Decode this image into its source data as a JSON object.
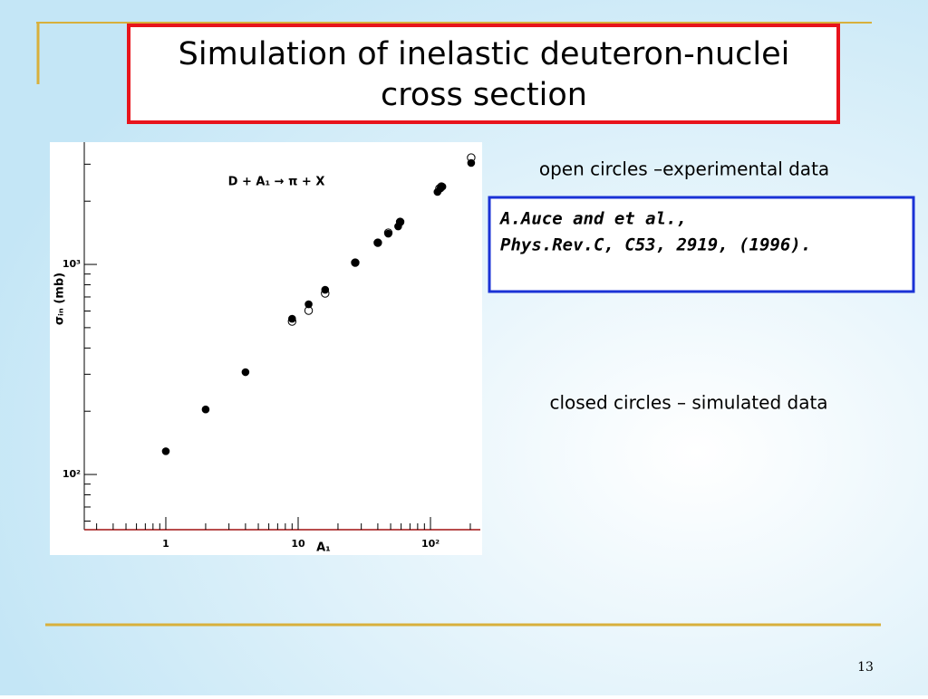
{
  "slide": {
    "title": [
      "Simulation of inelastic deuteron-nuclei",
      "cross section"
    ],
    "note_open": "open circles –experimental data",
    "reference": [
      "A.Auce and et al.,",
      "Phys.Rev.C, C53, 2919, (1996)."
    ],
    "note_closed": "closed circles – simulated data",
    "page_number": "13"
  },
  "chart_data": {
    "type": "scatter",
    "title": "D + A₁ → π + X",
    "xlabel": "A₁",
    "ylabel": "σᵢₙ (mb)",
    "log_x": true,
    "log_y": true,
    "xlim": [
      0.242,
      238
    ],
    "ylim": [
      54.6,
      3820
    ],
    "xticks": [
      1,
      10,
      {
        "value": 100,
        "label": "10²"
      }
    ],
    "yticks": [
      {
        "value": 100,
        "label": "10²"
      },
      {
        "value": 1000,
        "label": "10³"
      }
    ],
    "xminorticks": [
      0.3,
      0.4,
      0.5,
      0.6,
      0.7,
      0.8,
      0.9,
      2,
      3,
      4,
      5,
      6,
      7,
      8,
      9,
      20,
      30,
      40,
      50,
      60,
      70,
      80,
      90,
      200
    ],
    "yminorticks": [
      60,
      70,
      80,
      90,
      200,
      300,
      400,
      500,
      600,
      700,
      800,
      900,
      2000,
      3000
    ],
    "series": [
      {
        "color": "#000000",
        "filled": true,
        "x": [
          1,
          2,
          4,
          9,
          12,
          16,
          27,
          40,
          48,
          57,
          59,
          113,
          119,
          123,
          203
        ],
        "values": [
          129,
          204,
          307,
          551,
          646,
          757,
          1020,
          1269,
          1400,
          1517,
          1594,
          2213,
          2300,
          2346,
          3040
        ]
      },
      {
        "color": "#000000",
        "filled": false,
        "x": [
          9,
          12,
          16,
          27,
          40,
          48,
          59,
          117,
          121,
          203
        ],
        "values": [
          535,
          603,
          728,
          1020,
          1269,
          1414,
          1594,
          2300,
          2346,
          3224
        ]
      }
    ]
  }
}
